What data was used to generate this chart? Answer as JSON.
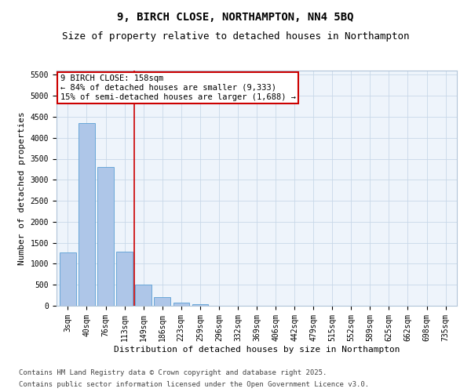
{
  "title_line1": "9, BIRCH CLOSE, NORTHAMPTON, NN4 5BQ",
  "title_line2": "Size of property relative to detached houses in Northampton",
  "xlabel": "Distribution of detached houses by size in Northampton",
  "ylabel": "Number of detached properties",
  "categories": [
    "3sqm",
    "40sqm",
    "76sqm",
    "113sqm",
    "149sqm",
    "186sqm",
    "223sqm",
    "259sqm",
    "296sqm",
    "332sqm",
    "369sqm",
    "406sqm",
    "442sqm",
    "479sqm",
    "515sqm",
    "552sqm",
    "589sqm",
    "625sqm",
    "662sqm",
    "698sqm",
    "735sqm"
  ],
  "values": [
    1270,
    4350,
    3300,
    1280,
    500,
    210,
    75,
    30,
    0,
    0,
    0,
    0,
    0,
    0,
    0,
    0,
    0,
    0,
    0,
    0,
    0
  ],
  "bar_color": "#aec6e8",
  "bar_edge_color": "#5a9fd4",
  "vline_x_index": 3.5,
  "vline_color": "#cc0000",
  "annotation_text": "9 BIRCH CLOSE: 158sqm\n← 84% of detached houses are smaller (9,333)\n15% of semi-detached houses are larger (1,688) →",
  "annotation_box_color": "#cc0000",
  "ylim": [
    0,
    5600
  ],
  "yticks": [
    0,
    500,
    1000,
    1500,
    2000,
    2500,
    3000,
    3500,
    4000,
    4500,
    5000,
    5500
  ],
  "grid_color": "#c8d8e8",
  "bg_color": "#eef4fb",
  "footer_line1": "Contains HM Land Registry data © Crown copyright and database right 2025.",
  "footer_line2": "Contains public sector information licensed under the Open Government Licence v3.0.",
  "title_fontsize": 10,
  "subtitle_fontsize": 9,
  "xlabel_fontsize": 8,
  "ylabel_fontsize": 8,
  "tick_fontsize": 7,
  "annotation_fontsize": 7.5,
  "footer_fontsize": 6.5
}
